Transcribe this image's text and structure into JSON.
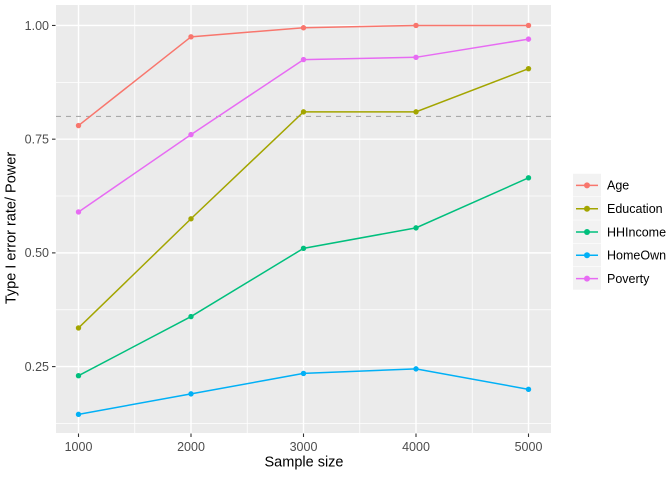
{
  "chart_data": {
    "type": "line",
    "title": "",
    "xlabel": "Sample size",
    "ylabel": "Type I error rate/ Power",
    "x": [
      1000,
      2000,
      3000,
      4000,
      5000
    ],
    "x_tick_labels": [
      "1000",
      "2000",
      "3000",
      "4000",
      "5000"
    ],
    "y_ticks": [
      0.25,
      0.5,
      0.75,
      1.0
    ],
    "y_tick_labels": [
      "0.25",
      "0.50",
      "0.75",
      "1.00"
    ],
    "x_minor_ticks": [
      1500,
      2500,
      3500,
      4500
    ],
    "y_minor_ticks": [
      0.125,
      0.375,
      0.625,
      0.875
    ],
    "xlim": [
      800,
      5200
    ],
    "ylim": [
      0.104,
      1.045
    ],
    "grid": true,
    "legend_position": "right",
    "series": [
      {
        "name": "Age",
        "color": "#F8766D",
        "values": [
          0.78,
          0.975,
          0.995,
          1.0,
          1.0
        ]
      },
      {
        "name": "Education",
        "color": "#A3A500",
        "values": [
          0.335,
          0.575,
          0.81,
          0.81,
          0.905
        ]
      },
      {
        "name": "HHIncome",
        "color": "#00BF7D",
        "values": [
          0.23,
          0.36,
          0.51,
          0.555,
          0.665
        ]
      },
      {
        "name": "HomeOwn",
        "color": "#00B0F6",
        "values": [
          0.145,
          0.19,
          0.235,
          0.245,
          0.2
        ]
      },
      {
        "name": "Poverty",
        "color": "#E76BF3",
        "values": [
          0.59,
          0.76,
          0.925,
          0.93,
          0.97
        ]
      }
    ],
    "reference_line": {
      "y": 0.8,
      "style": "dashed",
      "color": "#A9A9A9"
    }
  },
  "theme": {
    "background": "#FFFFFF",
    "panel_bg": "#EBEBEB",
    "grid_color": "#FFFFFF",
    "tick_color": "#333333",
    "tick_label_color": "#4D4D4D",
    "axis_title_color": "#000000",
    "legend_key_bg": "#F2F2F2",
    "legend_text_color": "#000000"
  }
}
